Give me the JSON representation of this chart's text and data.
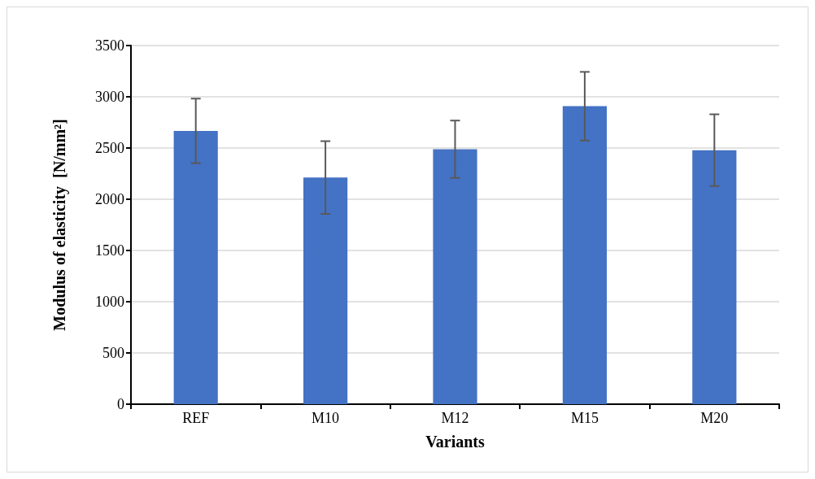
{
  "chart_data": {
    "type": "bar",
    "xlabel": "Variants",
    "ylabel": "Modulus of elasticity  [N/mm²]",
    "categories": [
      "REF",
      "M10",
      "M12",
      "M15",
      "M20"
    ],
    "values": [
      2667,
      2212,
      2488,
      2908,
      2479
    ],
    "errors": [
      315,
      355,
      280,
      335,
      350
    ],
    "color": "#4472c4",
    "ylim": [
      0,
      3500
    ],
    "yticks": [
      0,
      500,
      1000,
      1500,
      2000,
      2500,
      3000,
      3500
    ],
    "grid": "y"
  }
}
